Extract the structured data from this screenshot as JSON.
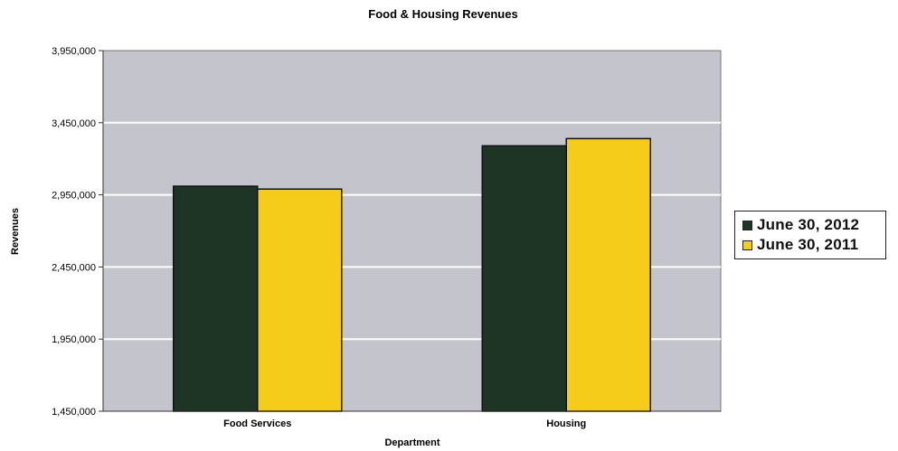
{
  "chart_data": {
    "type": "bar",
    "title": "Food & Housing Revenues",
    "xlabel": "Department",
    "ylabel": "Revenues",
    "categories": [
      "Food Services",
      "Housing"
    ],
    "series": [
      {
        "name": "June 30, 2012",
        "values": [
          3010000,
          3290000
        ],
        "color": "#1e3525"
      },
      {
        "name": "June 30, 2011",
        "values": [
          2990000,
          3340000
        ],
        "color": "#f5cc1a"
      }
    ],
    "ylim": [
      1450000,
      3950000
    ],
    "yticks": [
      1450000,
      1950000,
      2450000,
      2950000,
      3450000,
      3950000
    ],
    "ytick_labels": [
      "1,450,000",
      "1,950,000",
      "2,450,000",
      "2,950,000",
      "3,450,000",
      "3,950,000"
    ],
    "grid": true,
    "legend_position": "right",
    "plot_background": "#c4c4cc"
  }
}
